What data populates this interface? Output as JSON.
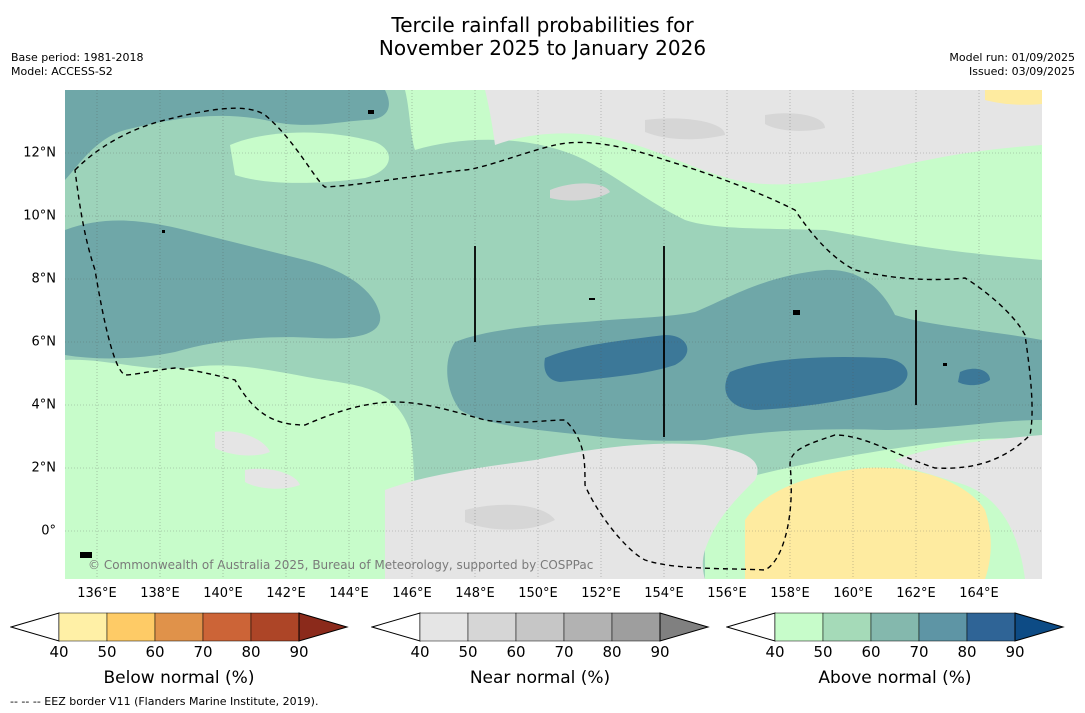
{
  "title": {
    "line1": "Tercile rainfall probabilities for",
    "line2": "November 2025 to January 2026"
  },
  "info_left": {
    "base_period": "Base period: 1981-2018",
    "model": "Model: ACCESS-S2"
  },
  "info_right": {
    "model_run": "Model run: 01/09/2025",
    "issued": "Issued: 03/09/2025"
  },
  "map": {
    "longitude_labels": [
      "136°E",
      "138°E",
      "140°E",
      "142°E",
      "144°E",
      "146°E",
      "148°E",
      "150°E",
      "152°E",
      "154°E",
      "156°E",
      "158°E",
      "160°E",
      "162°E",
      "164°E"
    ],
    "latitude_labels": [
      "12°N",
      "10°N",
      "8°N",
      "6°N",
      "4°N",
      "2°N",
      "0°"
    ],
    "copyright": "© Commonwealth of Australia 2025, Bureau of Meteorology, supported by COSPPac"
  },
  "colorbars": {
    "tick_labels": [
      "40",
      "50",
      "60",
      "70",
      "80",
      "90"
    ],
    "below": {
      "label": "Below normal (%)",
      "colors": [
        "#fff0a6",
        "#fecb66",
        "#e0924a",
        "#cc6437",
        "#ad4527",
        "#8b2a1b"
      ]
    },
    "near": {
      "label": "Near normal (%)",
      "colors": [
        "#e5e5e5",
        "#d6d6d6",
        "#c6c6c6",
        "#b2b2b2",
        "#9e9e9e",
        "#808080"
      ]
    },
    "above": {
      "label": "Above normal (%)",
      "colors": [
        "#c7fcca",
        "#a5dab8",
        "#84b8ad",
        "#5e95a5",
        "#2f6496",
        "#0d4b85"
      ]
    }
  },
  "footnote": "--  --  -- EEZ border V11 (Flanders Marine Institute, 2019)."
}
